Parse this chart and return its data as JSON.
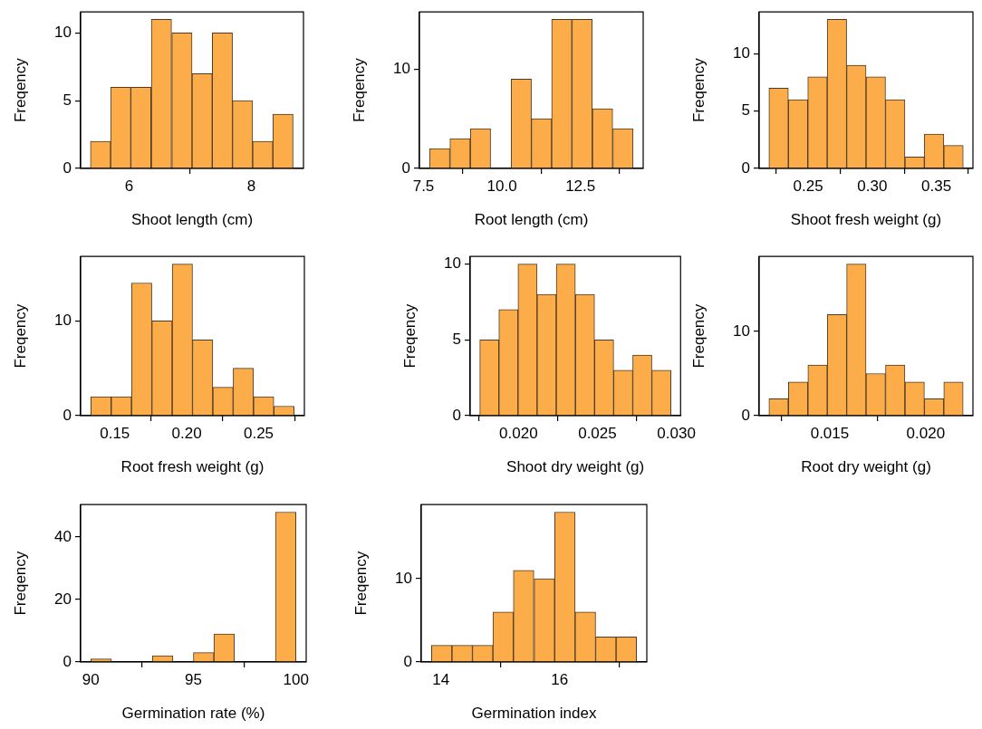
{
  "chart_data": [
    {
      "type": "histogram",
      "xlabel": "Shoot length (cm)",
      "ylabel": "Freqency",
      "color": "#fdac4a",
      "bins": [
        5.37,
        5.7,
        6.03,
        6.36,
        6.7,
        7.03,
        7.36,
        7.69,
        8.02,
        8.35,
        8.68
      ],
      "values": [
        2,
        6,
        6,
        11,
        10,
        7,
        10,
        5,
        2,
        4
      ],
      "xlim": [
        5.21,
        8.85
      ],
      "ylim": [
        0,
        11.55
      ],
      "xticks": [
        6,
        8
      ],
      "yticks": [
        0,
        5,
        10
      ]
    },
    {
      "type": "histogram",
      "xlabel": "Root length (cm)",
      "ylabel": "Freqency",
      "color": "#fdac4a",
      "bins": [
        7.69,
        8.34,
        8.99,
        9.64,
        10.29,
        10.94,
        11.58,
        12.23,
        12.88,
        13.53,
        14.18
      ],
      "values": [
        2,
        3,
        4,
        0,
        9,
        5,
        15,
        15,
        6,
        4
      ],
      "xlim": [
        7.37,
        14.5
      ],
      "ylim": [
        0,
        15.75
      ],
      "xticks": [
        7.5,
        {
          "value": 10,
          "label": "10.0"
        },
        12.5
      ],
      "yticks": [
        0,
        10
      ]
    },
    {
      "type": "histogram",
      "xlabel": "Shoot fresh weight (g)",
      "ylabel": "Freqency",
      "color": "#fdac4a",
      "bins": [
        0.2194,
        0.2346,
        0.2497,
        0.2649,
        0.28,
        0.2952,
        0.3103,
        0.3255,
        0.3406,
        0.3558,
        0.3709
      ],
      "values": [
        7,
        6,
        8,
        13,
        9,
        8,
        6,
        1,
        3,
        2
      ],
      "xlim": [
        0.2118,
        0.3785
      ],
      "ylim": [
        0,
        13.65
      ],
      "xticks": [
        0.25,
        {
          "value": 0.3,
          "label": "0.30"
        },
        0.35
      ],
      "yticks": [
        0,
        5,
        10
      ]
    },
    {
      "type": "histogram",
      "xlabel": "Root fresh weight (g)",
      "ylabel": "Freqency",
      "color": "#fdac4a",
      "bins": [
        0.1333,
        0.1474,
        0.1616,
        0.1757,
        0.1899,
        0.204,
        0.2181,
        0.2323,
        0.2464,
        0.2606,
        0.2747
      ],
      "values": [
        2,
        2,
        14,
        10,
        16,
        8,
        3,
        5,
        2,
        1
      ],
      "xlim": [
        0.1262,
        0.2818
      ],
      "ylim": [
        0,
        16.8
      ],
      "xticks": [
        0.15,
        {
          "value": 0.2,
          "label": "0.20"
        },
        0.25
      ],
      "yticks": [
        0,
        10
      ]
    },
    {
      "type": "histogram",
      "xlabel": "Shoot dry weight (g)",
      "ylabel": "Freqency",
      "color": "#fdac4a",
      "bins": [
        0.01755,
        0.01876,
        0.01997,
        0.02118,
        0.02239,
        0.02361,
        0.02482,
        0.02603,
        0.02724,
        0.02845,
        0.02966
      ],
      "values": [
        5,
        7,
        10,
        8,
        10,
        8,
        5,
        3,
        4,
        3
      ],
      "xlim": [
        0.01694,
        0.03027
      ],
      "ylim": [
        0,
        10.5
      ],
      "xticks": [
        {
          "value": 0.02,
          "label": "0.020"
        },
        0.025,
        {
          "value": 0.03,
          "label": "0.030"
        }
      ],
      "yticks": [
        0,
        5,
        10
      ]
    },
    {
      "type": "histogram",
      "xlabel": "Root dry weight (g)",
      "ylabel": "Freqency",
      "color": "#fdac4a",
      "bins": [
        0.01183,
        0.01284,
        0.01386,
        0.01487,
        0.01588,
        0.01689,
        0.0179,
        0.01892,
        0.01993,
        0.02094,
        0.02195
      ],
      "values": [
        2,
        4,
        6,
        12,
        18,
        5,
        6,
        4,
        2,
        4
      ],
      "xlim": [
        0.01132,
        0.02246
      ],
      "ylim": [
        0,
        18.9
      ],
      "xticks": [
        0.015,
        {
          "value": 0.02,
          "label": "0.020"
        }
      ],
      "yticks": [
        0,
        10
      ]
    },
    {
      "type": "histogram",
      "xlabel": "Germination rate (%)",
      "ylabel": "Freqency",
      "color": "#fdac4a",
      "bins": [
        90,
        91,
        92,
        93,
        94,
        95,
        96,
        97,
        98,
        99,
        100
      ],
      "values": [
        1,
        0,
        0,
        2,
        0,
        3,
        9,
        0,
        0,
        48
      ],
      "xlim": [
        89.5,
        100.5
      ],
      "ylim": [
        0,
        50.4
      ],
      "xticks": [
        90,
        95,
        100
      ],
      "yticks": [
        0,
        20,
        40
      ]
    },
    {
      "type": "histogram",
      "xlabel": "Germination index",
      "ylabel": "Freqency",
      "color": "#fdac4a",
      "bins": [
        13.84,
        14.19,
        14.53,
        14.88,
        15.22,
        15.57,
        15.92,
        16.26,
        16.61,
        16.95,
        17.3
      ],
      "values": [
        2,
        2,
        2,
        6,
        11,
        10,
        18,
        6,
        3,
        3
      ],
      "xlim": [
        13.67,
        17.47
      ],
      "ylim": [
        0,
        18.9
      ],
      "xticks": [
        14,
        16
      ],
      "yticks": [
        0,
        10
      ]
    }
  ]
}
